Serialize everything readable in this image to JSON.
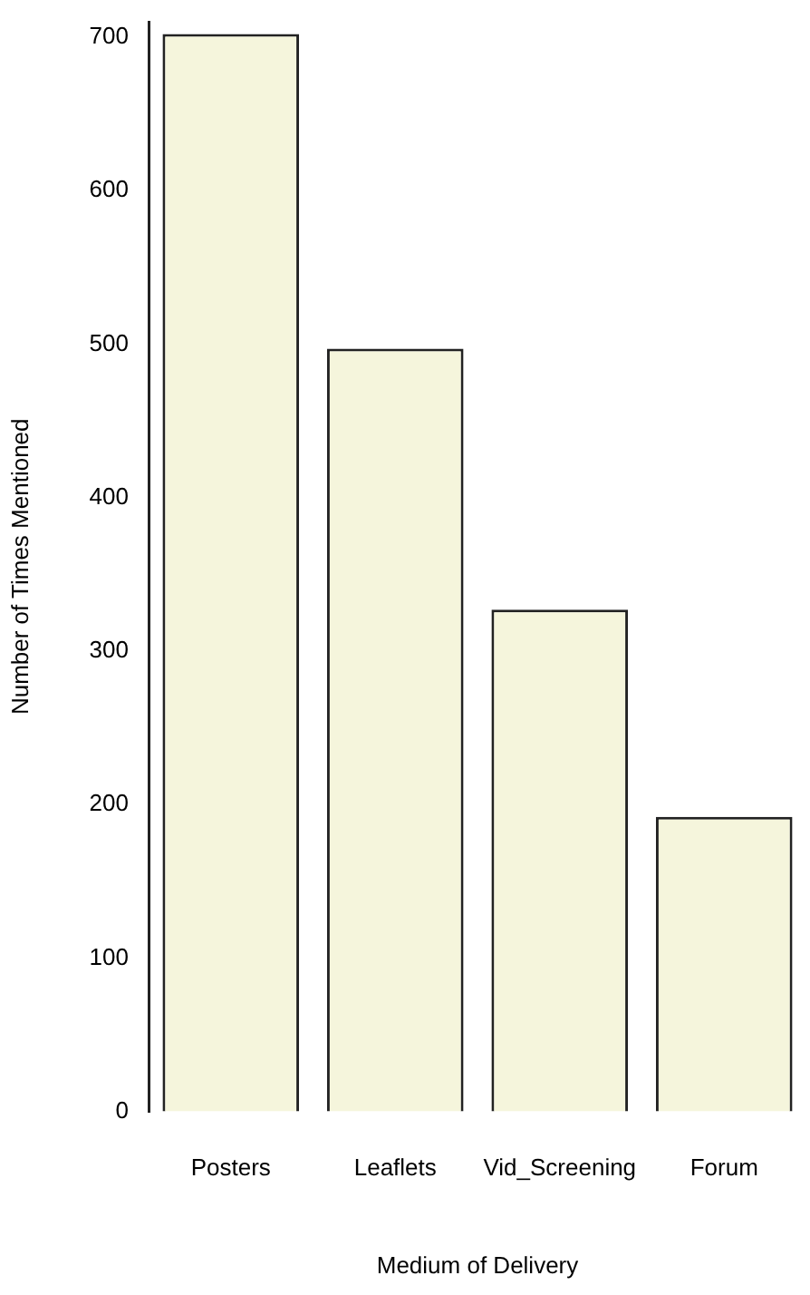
{
  "chart_data": {
    "type": "bar",
    "xlabel": "Medium of Delivery",
    "ylabel": "Number of Times Mentioned",
    "categories": [
      "Posters",
      "Leaflets",
      "Vid_Screening",
      "Forum"
    ],
    "values": [
      702,
      497,
      327,
      192
    ],
    "color": "#f5f5dc",
    "ylim": [
      0,
      710
    ],
    "yticks": [
      0,
      100,
      200,
      300,
      400,
      500,
      600,
      700
    ],
    "grid": false,
    "legend": false
  }
}
